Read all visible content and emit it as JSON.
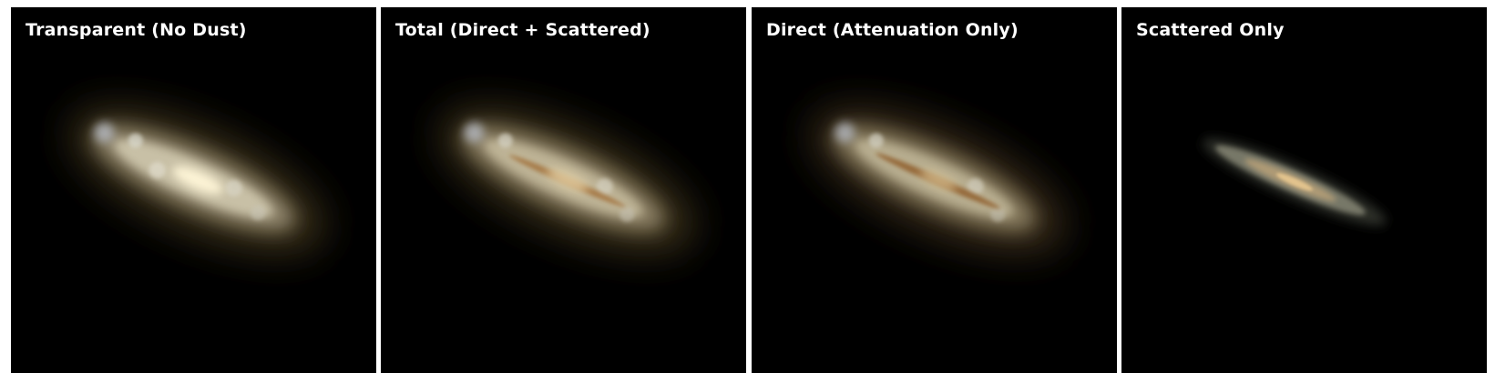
{
  "panels": [
    {
      "title": "Transparent (No Dust)"
    },
    {
      "title": "Total (Direct + Scattered)"
    },
    {
      "title": "Direct (Attenuation Only)"
    },
    {
      "title": "Scattered Only"
    }
  ],
  "colors": {
    "background": "#000000",
    "frame": "#ffffff",
    "halo": "#5a4a2a",
    "disk": "#c8bc9c",
    "core": "#fff6d8",
    "dust_lane": "#b07838",
    "scatter_disk": "#9a9a8a"
  }
}
